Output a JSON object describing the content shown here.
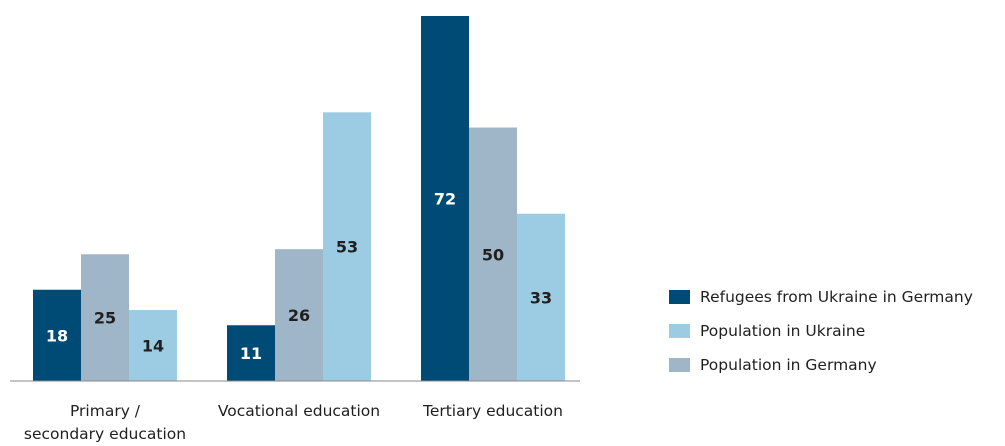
{
  "chart_data": {
    "type": "bar",
    "categories": [
      [
        "Primary /",
        "secondary education"
      ],
      [
        "Vocational education"
      ],
      [
        "Tertiary education"
      ]
    ],
    "series": [
      {
        "name": "Refugees from Ukraine in Germany",
        "values": [
          18,
          11,
          72
        ],
        "color": "#004b76"
      },
      {
        "name": "Population in Germany",
        "values": [
          25,
          26,
          50
        ],
        "color": "#9fb5c8"
      },
      {
        "name": "Population in Ukraine",
        "values": [
          14,
          53,
          33
        ],
        "color": "#9ccbe4"
      }
    ],
    "bar_order": [
      "Refugees from Ukraine in Germany",
      "Population in Germany",
      "Population in Ukraine"
    ],
    "legend_order": [
      "Refugees from Ukraine in Germany",
      "Population in Ukraine",
      "Population in Germany"
    ],
    "legend_position": "right",
    "data_label_colors": {
      "Refugees from Ukraine in Germany": "#ffffff",
      "Population in Germany": "#1f1f1f",
      "Population in Ukraine": "#1f1f1f"
    },
    "ylim": [
      0,
      72
    ],
    "grid": false
  }
}
